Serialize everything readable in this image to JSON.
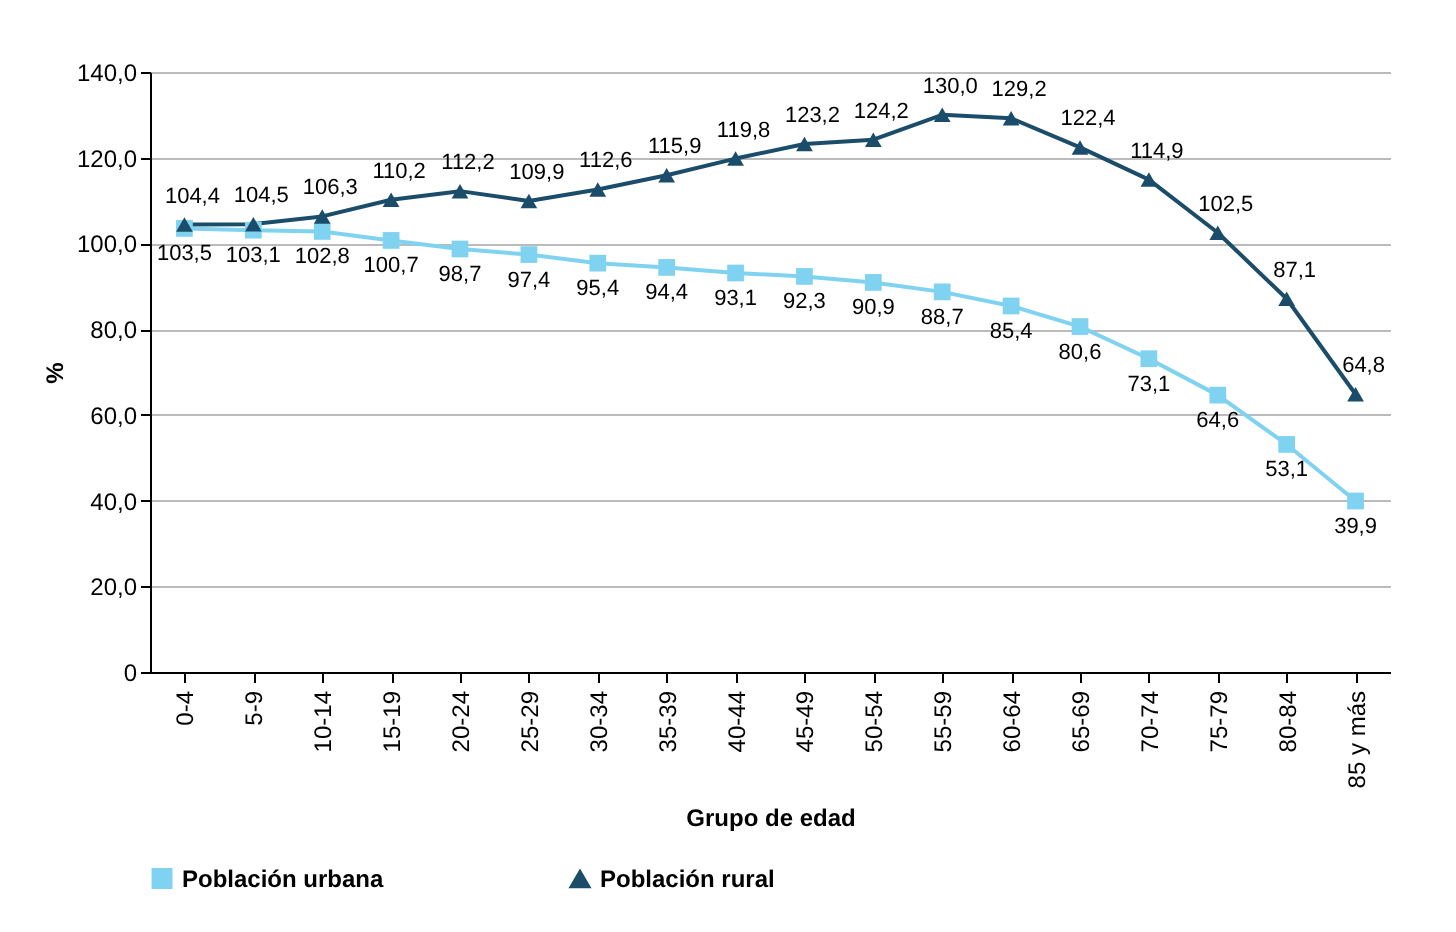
{
  "chart_data": {
    "type": "line",
    "xlabel": "Grupo de edad",
    "ylabel": "%",
    "categories": [
      "0-4",
      "5-9",
      "10-14",
      "15-19",
      "20-24",
      "25-29",
      "30-34",
      "35-39",
      "40-44",
      "45-49",
      "50-54",
      "55-59",
      "60-64",
      "65-69",
      "70-74",
      "75-79",
      "80-84",
      "85 y más"
    ],
    "series": [
      {
        "name": "Población urbana",
        "color": "#7fd3f0",
        "marker": "square",
        "values": [
          103.5,
          103.1,
          102.8,
          100.7,
          98.7,
          97.4,
          95.4,
          94.4,
          93.1,
          92.3,
          90.9,
          88.7,
          85.4,
          80.6,
          73.1,
          64.6,
          53.1,
          39.9
        ],
        "value_labels": [
          "103,5",
          "103,1",
          "102,8",
          "100,7",
          "98,7",
          "97,4",
          "95,4",
          "94,4",
          "93,1",
          "92,3",
          "90,9",
          "88,7",
          "85,4",
          "80,6",
          "73,1",
          "64,6",
          "53,1",
          "39,9"
        ]
      },
      {
        "name": "Población rural",
        "color": "#1b4d6b",
        "marker": "triangle",
        "values": [
          104.4,
          104.5,
          106.3,
          110.2,
          112.2,
          109.9,
          112.6,
          115.9,
          119.8,
          123.2,
          124.2,
          130.0,
          129.2,
          122.4,
          114.9,
          102.5,
          87.1,
          64.8
        ],
        "value_labels": [
          "104,4",
          "104,5",
          "106,3",
          "110,2",
          "112,2",
          "109,9",
          "112,6",
          "115,9",
          "119,8",
          "123,2",
          "124,2",
          "130,0",
          "129,2",
          "122,4",
          "114,9",
          "102,5",
          "87,1",
          "64,8"
        ]
      }
    ],
    "ylim": [
      0,
      140
    ],
    "yticks": [
      0,
      {
        "value": 20,
        "label": "20,0"
      },
      {
        "value": 40,
        "label": "40,0"
      },
      {
        "value": 60,
        "label": "60,0"
      },
      {
        "value": 80,
        "label": "80,0"
      },
      {
        "value": 100,
        "label": "100,0"
      },
      {
        "value": 120,
        "label": "120,0"
      },
      {
        "value": 140,
        "label": "140,0"
      }
    ],
    "grid": "y",
    "legend": "bottom",
    "line_style": "solid"
  }
}
